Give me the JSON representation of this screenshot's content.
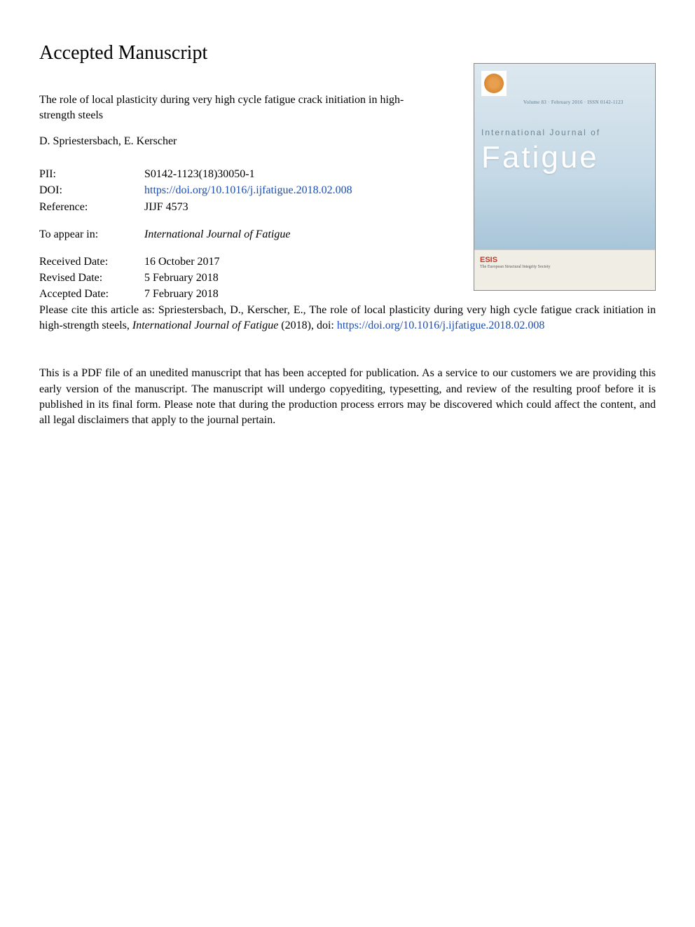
{
  "page": {
    "header": "Accepted Manuscript",
    "article_title": "The role of local plasticity during very high cycle fatigue crack initiation in high-strength steels",
    "authors": "D. Spriestersbach, E. Kerscher"
  },
  "meta": {
    "pii_label": "PII:",
    "pii_value": "S0142-1123(18)30050-1",
    "doi_label": "DOI:",
    "doi_value": "https://doi.org/10.1016/j.ijfatigue.2018.02.008",
    "ref_label": "Reference:",
    "ref_value": "JIJF 4573",
    "appear_label": "To appear in:",
    "appear_value": "International Journal of Fatigue",
    "received_label": "Received Date:",
    "received_value": "16 October 2017",
    "revised_label": "Revised Date:",
    "revised_value": "5 February 2018",
    "accepted_label": "Accepted Date:",
    "accepted_value": "7 February 2018"
  },
  "citation": {
    "prefix": "Please cite this article as: Spriestersbach, D., Kerscher, E., The role of local plasticity during very high cycle fatigue crack initiation in high-strength steels, ",
    "journal": "International Journal of Fatigue",
    "middle": " (2018), doi: ",
    "link": "https://doi.org/10.1016/j.ijfatigue.2018.02.008"
  },
  "disclaimer": "This is a PDF file of an unedited manuscript that has been accepted for publication. As a service to our customers we are providing this early version of the manuscript. The manuscript will undergo copyediting, typesetting, and review of the resulting proof before it is published in its final form. Please note that during the production process errors may be discovered which could affect the content, and all legal disclaimers that apply to the journal pertain.",
  "cover": {
    "volume_info": "Volume 83 · February 2016 · ISSN 0142-1123",
    "label": "International Journal of",
    "title": "Fatigue",
    "esis": "ESIS",
    "esis_sub": "The European Structural Integrity Society"
  },
  "colors": {
    "background": "#ffffff",
    "text": "#000000",
    "link": "#1a4db3",
    "cover_gradient_top": "#dde8ef",
    "cover_gradient_bottom": "#a8c5d8",
    "cover_label": "#6a8595",
    "cover_title": "#ffffff",
    "cover_lower_bg": "#f0ede5",
    "esis_color": "#c0392b"
  },
  "typography": {
    "header_fontsize": 28,
    "body_fontsize": 16,
    "cover_title_fontsize": 44,
    "cover_label_fontsize": 12,
    "font_family": "Times New Roman"
  }
}
